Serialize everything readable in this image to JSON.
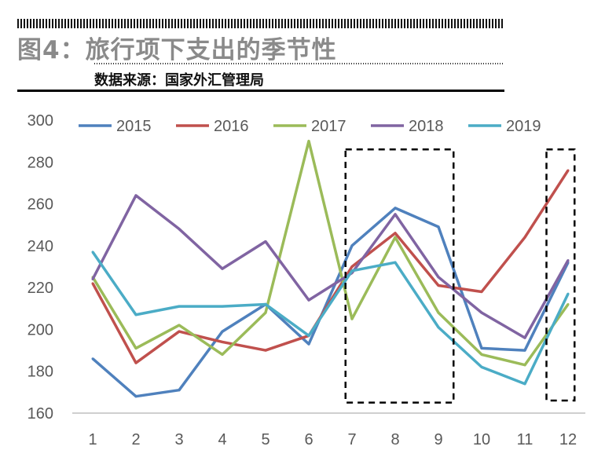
{
  "header": {
    "title": "图4：旅行项下支出的季节性",
    "source": "数据来源：国家外汇管理局"
  },
  "chart_data": {
    "type": "line",
    "title": "图4：旅行项下支出的季节性",
    "xlabel": "",
    "ylabel": "",
    "x": [
      1,
      2,
      3,
      4,
      5,
      6,
      7,
      8,
      9,
      10,
      11,
      12
    ],
    "yticks": [
      160,
      180,
      200,
      220,
      240,
      260,
      280,
      300
    ],
    "ylim": [
      160,
      300
    ],
    "grid": false,
    "legend": "top",
    "series": [
      {
        "name": "2015",
        "color": "#4f81bd",
        "values": [
          186,
          168,
          171,
          199,
          212,
          193,
          240,
          258,
          249,
          191,
          190,
          232
        ]
      },
      {
        "name": "2016",
        "color": "#c0504d",
        "values": [
          222,
          184,
          199,
          194,
          190,
          197,
          230,
          246,
          221,
          218,
          244,
          276
        ]
      },
      {
        "name": "2017",
        "color": "#9bbb59",
        "values": [
          225,
          191,
          202,
          188,
          208,
          290,
          205,
          244,
          208,
          188,
          183,
          212
        ]
      },
      {
        "name": "2018",
        "color": "#8064a2",
        "values": [
          224,
          264,
          248,
          229,
          242,
          214,
          227,
          255,
          225,
          208,
          196,
          233
        ]
      },
      {
        "name": "2019",
        "color": "#4bacc6",
        "values": [
          237,
          207,
          211,
          211,
          212,
          197,
          228,
          232,
          201,
          182,
          174,
          217
        ]
      }
    ],
    "annotations": [
      {
        "type": "dashed-box",
        "x_range": [
          6.85,
          9.35
        ],
        "y_range": [
          165,
          286
        ]
      },
      {
        "type": "dashed-box",
        "x_range": [
          11.5,
          12.15
        ],
        "y_range": [
          166,
          286
        ]
      }
    ]
  }
}
